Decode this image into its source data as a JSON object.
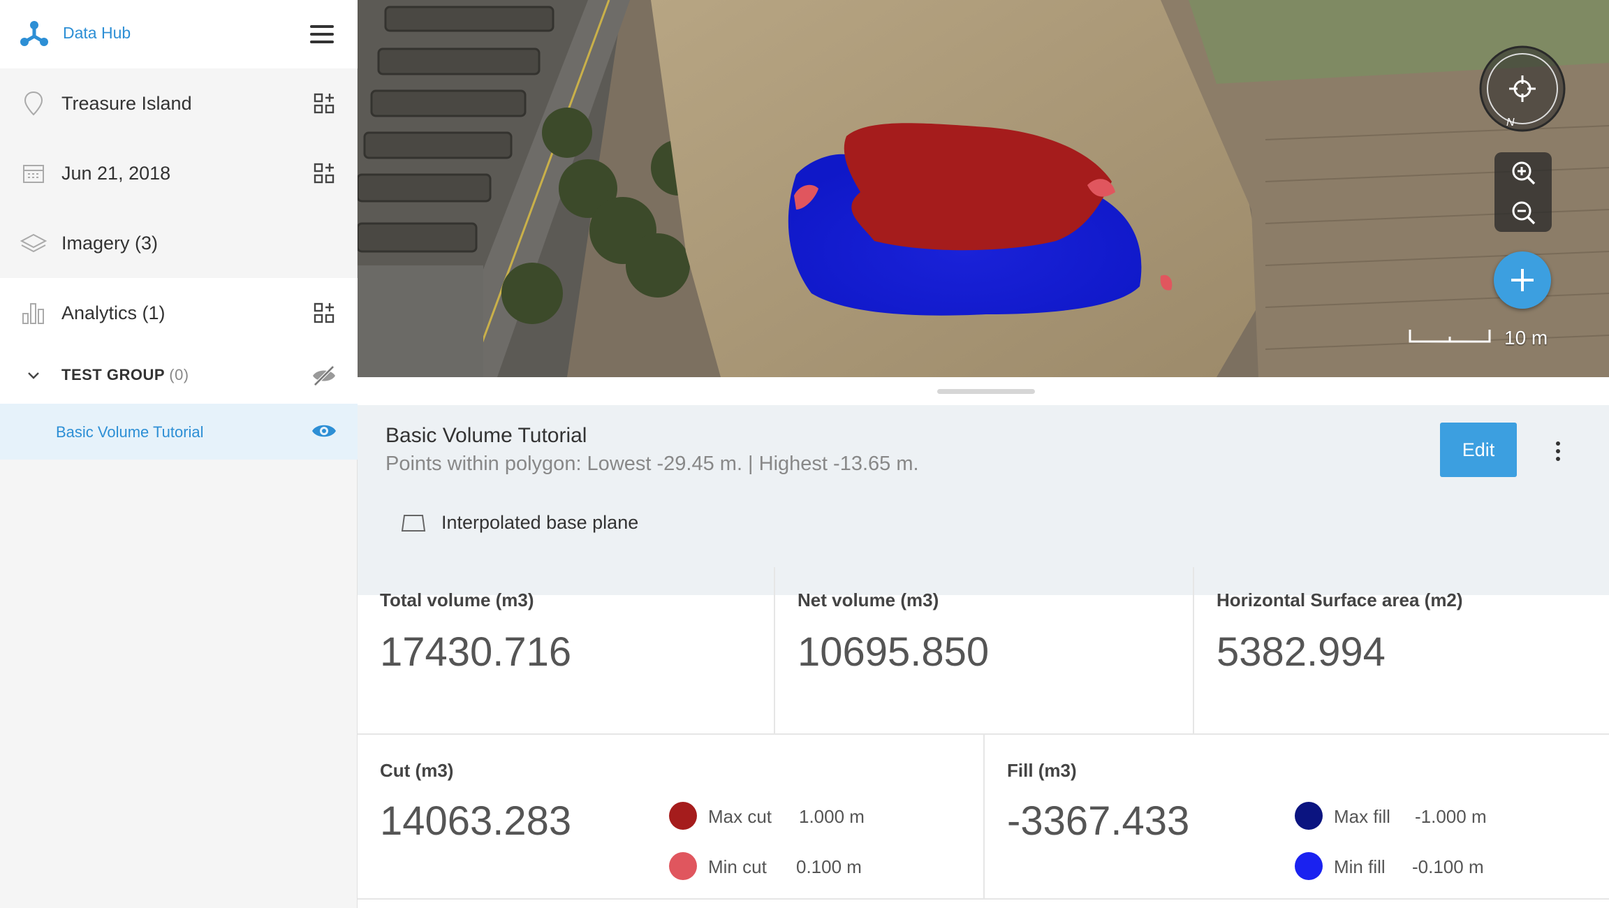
{
  "app": {
    "title": "Data Hub"
  },
  "sidebar": {
    "location": "Treasure Island",
    "date": "Jun 21, 2018",
    "imagery": "Imagery (3)",
    "analytics": "Analytics (1)",
    "group": {
      "name": "TEST GROUP",
      "count": "(0)"
    },
    "active_item": "Basic Volume Tutorial"
  },
  "map": {
    "scale_label": "10 m",
    "compass_letter": "N"
  },
  "panel": {
    "title": "Basic Volume Tutorial",
    "subtitle": "Points within polygon: Lowest -29.45 m. | Highest -13.65 m.",
    "edit_label": "Edit",
    "base_plane": "Interpolated base plane",
    "stats": {
      "total_volume": {
        "label": "Total volume (m3)",
        "value": "17430.716"
      },
      "net_volume": {
        "label": "Net volume (m3)",
        "value": "10695.850"
      },
      "surface_area": {
        "label": "Horizontal Surface area (m2)",
        "value": "5382.994"
      },
      "cut": {
        "label": "Cut (m3)",
        "value": "14063.283"
      },
      "fill": {
        "label": "Fill (m3)",
        "value": "-3367.433"
      }
    },
    "cut_legend": [
      {
        "name": "Max cut",
        "value": "1.000  m",
        "color": "#a51c1c"
      },
      {
        "name": "Min cut",
        "value": "0.100  m",
        "color": "#e0565e"
      }
    ],
    "fill_legend": [
      {
        "name": "Max fill",
        "value": "-1.000  m",
        "color": "#0b1480"
      },
      {
        "name": "Min fill",
        "value": "-0.100  m",
        "color": "#1a22f0"
      }
    ]
  },
  "colors": {
    "accent": "#3c9fe0",
    "link": "#2d8fd5",
    "cut": "#a51c1c",
    "fill": "#1a22f0"
  }
}
